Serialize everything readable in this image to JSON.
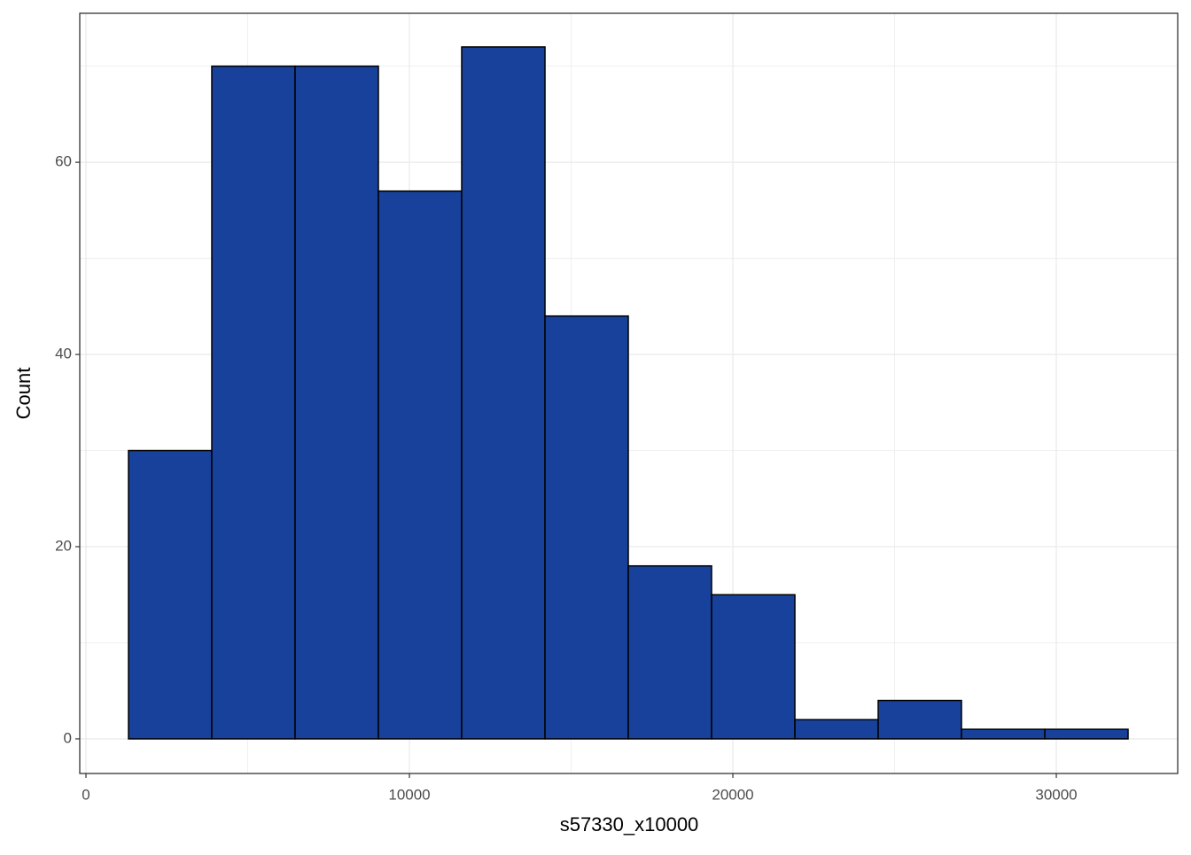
{
  "chart_data": {
    "type": "histogram",
    "x_label": "s57330_x10000",
    "y_label": "Count",
    "bins": [
      1315,
      3890,
      6466,
      9041,
      11616,
      14192,
      16767,
      19342,
      21918,
      24493,
      27068,
      29644,
      32219
    ],
    "values": [
      30,
      70,
      70,
      57,
      72,
      44,
      18,
      15,
      2,
      4,
      1,
      1
    ],
    "color": "#17419a",
    "edge_color": "#000000",
    "xlim": [
      -192,
      33753
    ],
    "ylim": [
      -3.6,
      75.5
    ],
    "xticks": [
      0,
      10000,
      20000,
      30000
    ],
    "yticks": [
      0,
      20,
      40,
      60
    ],
    "grid": true
  }
}
